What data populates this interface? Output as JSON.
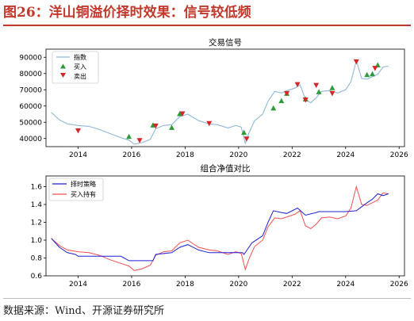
{
  "header": {
    "title": "图26：洋山铜溢价择时效果：信号较低频"
  },
  "footer": {
    "source": "数据来源：Wind、开源证券研究所"
  },
  "colors": {
    "title_red": "#c0392b",
    "price_line": "#8fb7d6",
    "buy_marker": "#2e9a3a",
    "sell_marker": "#d62728",
    "timing_line": "#1f1fd6",
    "hold_line": "#f05050"
  },
  "chart_data": [
    {
      "type": "line",
      "title": "交易信号",
      "x_tick_labels": [
        "2014",
        "2016",
        "2018",
        "2020",
        "2022",
        "2024",
        "2026"
      ],
      "y_tick_labels": [
        "40000",
        "50000",
        "60000",
        "70000",
        "80000",
        "90000"
      ],
      "xlim": [
        2012.8,
        2026.2
      ],
      "ylim": [
        35000,
        95000
      ],
      "grid": false,
      "legend_position": "top-left",
      "series": [
        {
          "name": "指数",
          "x": [
            2013.0,
            2013.3,
            2013.6,
            2014.0,
            2014.4,
            2014.8,
            2015.2,
            2015.6,
            2015.9,
            2016.1,
            2016.4,
            2016.7,
            2016.9,
            2017.2,
            2017.5,
            2017.8,
            2018.1,
            2018.5,
            2018.9,
            2019.2,
            2019.6,
            2019.9,
            2020.1,
            2020.25,
            2020.4,
            2020.6,
            2020.9,
            2021.1,
            2021.35,
            2021.6,
            2021.9,
            2022.1,
            2022.3,
            2022.5,
            2022.7,
            2022.9,
            2023.1,
            2023.4,
            2023.7,
            2024.0,
            2024.2,
            2024.4,
            2024.6,
            2024.8,
            2025.0,
            2025.2,
            2025.4,
            2025.6
          ],
          "y": [
            56000,
            51500,
            49000,
            48000,
            47500,
            45500,
            43000,
            40500,
            39000,
            36500,
            37500,
            39500,
            46000,
            48000,
            48500,
            53500,
            55000,
            51000,
            49000,
            48500,
            46500,
            48000,
            47000,
            37000,
            44000,
            51000,
            55000,
            63000,
            69000,
            68000,
            70000,
            71000,
            73000,
            64000,
            62000,
            65000,
            69000,
            69500,
            68000,
            70000,
            75000,
            88000,
            77000,
            76500,
            78000,
            79500,
            84000,
            84500
          ]
        },
        {
          "name": "买入",
          "x": [
            2015.9,
            2016.8,
            2017.5,
            2017.8,
            2020.2,
            2021.3,
            2021.6,
            2021.8,
            2022.5,
            2023.0,
            2023.5,
            2024.8,
            2025.0,
            2025.2
          ],
          "y": [
            41000,
            48000,
            46500,
            55000,
            43500,
            58500,
            63000,
            67500,
            64000,
            68500,
            71000,
            79000,
            79500,
            85000
          ]
        },
        {
          "name": "卖出",
          "x": [
            2014.0,
            2016.3,
            2016.9,
            2017.9,
            2018.9,
            2020.3,
            2021.8,
            2022.2,
            2022.5,
            2022.9,
            2023.5,
            2024.4,
            2025.1
          ],
          "y": [
            45000,
            39000,
            48000,
            55500,
            49500,
            40000,
            68000,
            73500,
            64000,
            73000,
            68000,
            87500,
            83500
          ]
        }
      ]
    },
    {
      "type": "line",
      "title": "组合净值对比",
      "x_tick_labels": [
        "2014",
        "2016",
        "2018",
        "2020",
        "2022",
        "2024",
        "2026"
      ],
      "y_tick_labels": [
        "0.6",
        "0.8",
        "1.0",
        "1.2",
        "1.4",
        "1.6"
      ],
      "xlim": [
        2012.8,
        2026.2
      ],
      "ylim": [
        0.6,
        1.72
      ],
      "grid": false,
      "legend_position": "top-left",
      "series": [
        {
          "name": "择时策略",
          "x": [
            2013.0,
            2013.3,
            2013.6,
            2013.9,
            2014.0,
            2015.6,
            2015.9,
            2016.8,
            2016.9,
            2017.5,
            2017.8,
            2018.1,
            2018.5,
            2018.9,
            2020.15,
            2020.2,
            2020.5,
            2020.9,
            2021.1,
            2021.3,
            2021.6,
            2021.8,
            2022.2,
            2022.5,
            2022.9,
            2023.0,
            2023.5,
            2024.0,
            2024.4,
            2024.8,
            2025.0,
            2025.2,
            2025.4,
            2025.6
          ],
          "y": [
            1.02,
            0.92,
            0.86,
            0.84,
            0.82,
            0.82,
            0.77,
            0.77,
            0.84,
            0.86,
            0.92,
            0.95,
            0.89,
            0.86,
            0.86,
            0.84,
            0.97,
            1.05,
            1.2,
            1.33,
            1.31,
            1.3,
            1.36,
            1.28,
            1.31,
            1.32,
            1.32,
            1.32,
            1.33,
            1.42,
            1.46,
            1.52,
            1.5,
            1.52
          ]
        },
        {
          "name": "买入持有",
          "x": [
            2013.0,
            2013.3,
            2013.6,
            2014.0,
            2014.4,
            2014.8,
            2015.2,
            2015.6,
            2015.9,
            2016.1,
            2016.4,
            2016.7,
            2016.9,
            2017.2,
            2017.5,
            2017.8,
            2018.1,
            2018.5,
            2018.9,
            2019.2,
            2019.6,
            2019.9,
            2020.1,
            2020.25,
            2020.4,
            2020.6,
            2020.9,
            2021.1,
            2021.35,
            2021.6,
            2021.9,
            2022.1,
            2022.3,
            2022.5,
            2022.7,
            2022.9,
            2023.1,
            2023.4,
            2023.7,
            2024.0,
            2024.2,
            2024.4,
            2024.6,
            2024.8,
            2025.0,
            2025.2,
            2025.4,
            2025.6
          ],
          "y": [
            1.02,
            0.94,
            0.89,
            0.87,
            0.86,
            0.83,
            0.78,
            0.74,
            0.71,
            0.66,
            0.68,
            0.72,
            0.83,
            0.87,
            0.88,
            0.97,
            1.0,
            0.92,
            0.89,
            0.88,
            0.84,
            0.87,
            0.85,
            0.67,
            0.8,
            0.93,
            1.0,
            1.15,
            1.25,
            1.24,
            1.27,
            1.29,
            1.33,
            1.16,
            1.13,
            1.18,
            1.25,
            1.26,
            1.24,
            1.27,
            1.36,
            1.6,
            1.4,
            1.39,
            1.42,
            1.45,
            1.53,
            1.52
          ]
        }
      ]
    }
  ]
}
